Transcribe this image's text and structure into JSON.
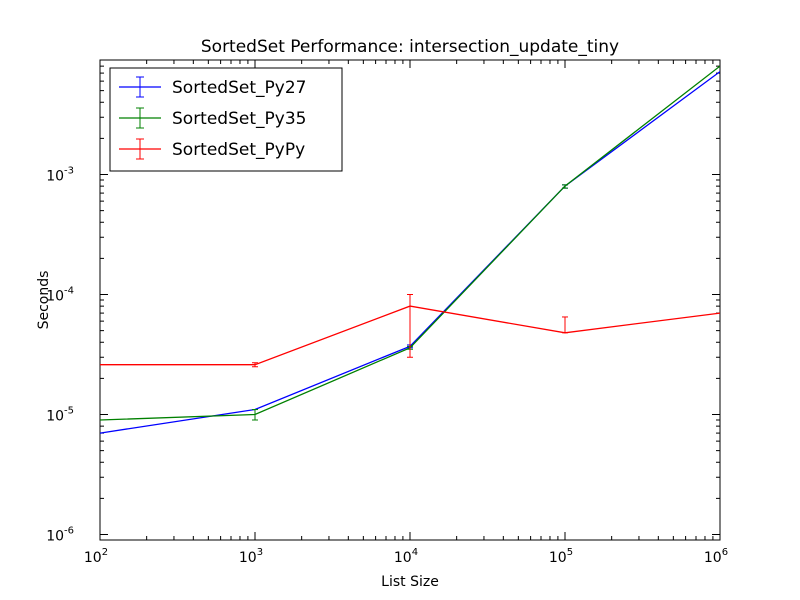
{
  "chart_data": {
    "type": "line",
    "title": "SortedSet Performance: intersection_update_tiny",
    "xlabel": "List Size",
    "ylabel": "Seconds",
    "xscale": "log",
    "yscale": "log",
    "xlim": [
      100,
      1000000
    ],
    "ylim": [
      9e-07,
      0.009
    ],
    "x": [
      100,
      1000,
      10000,
      100000,
      1000000
    ],
    "x_ticks": [
      {
        "base": "10",
        "exp": "2",
        "value": 100
      },
      {
        "base": "10",
        "exp": "3",
        "value": 1000
      },
      {
        "base": "10",
        "exp": "4",
        "value": 10000
      },
      {
        "base": "10",
        "exp": "5",
        "value": 100000
      },
      {
        "base": "10",
        "exp": "6",
        "value": 1000000
      }
    ],
    "y_ticks": [
      {
        "base": "10",
        "exp": "-6",
        "value": 1e-06
      },
      {
        "base": "10",
        "exp": "-5",
        "value": 1e-05
      },
      {
        "base": "10",
        "exp": "-4",
        "value": 0.0001
      },
      {
        "base": "10",
        "exp": "-3",
        "value": 0.001
      }
    ],
    "grid": false,
    "legend_position": "top-left",
    "series": [
      {
        "name": "SortedSet_Py27",
        "color": "#0000ff",
        "values": [
          7e-06,
          1.1e-05,
          3.7e-05,
          0.0008,
          0.0072
        ],
        "err_low": [
          7e-06,
          1.1e-05,
          3.6e-05,
          0.00077,
          0.0072
        ],
        "err_high": [
          7e-06,
          1.1e-05,
          3.8e-05,
          0.00082,
          0.0072
        ]
      },
      {
        "name": "SortedSet_Py35",
        "color": "#008000",
        "values": [
          9e-06,
          1e-05,
          3.6e-05,
          0.0008,
          0.008
        ],
        "err_low": [
          9e-06,
          9e-06,
          3.5e-05,
          0.00077,
          0.008
        ],
        "err_high": [
          9e-06,
          1.1e-05,
          3.7e-05,
          0.00082,
          0.008
        ]
      },
      {
        "name": "SortedSet_PyPy",
        "color": "#ff0000",
        "values": [
          2.6e-05,
          2.6e-05,
          8e-05,
          4.8e-05,
          7e-05
        ],
        "err_low": [
          2.6e-05,
          2.5e-05,
          3e-05,
          4.8e-05,
          7e-05
        ],
        "err_high": [
          2.6e-05,
          2.7e-05,
          0.0001,
          6.5e-05,
          7e-05
        ]
      }
    ]
  }
}
